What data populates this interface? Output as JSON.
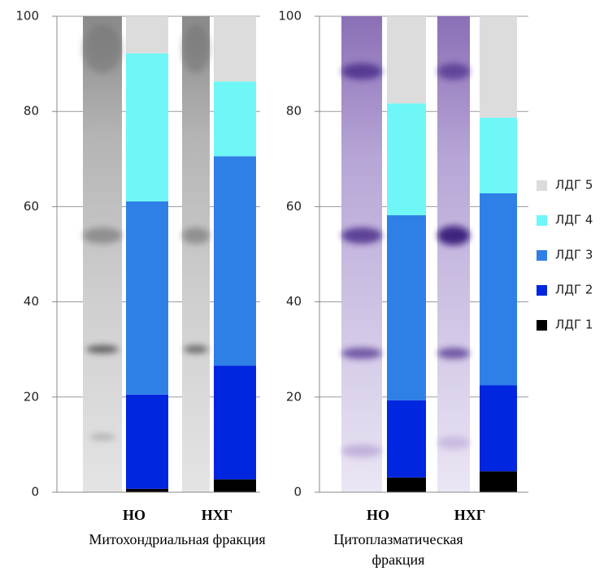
{
  "chart_data": [
    {
      "type": "bar",
      "stacked": true,
      "xlabel": "Митохондриальная фракция",
      "categories": [
        "НО",
        "НХГ"
      ],
      "series": [
        {
          "color": "#000000",
          "values": [
            0.7,
            2.7
          ]
        },
        {
          "color": "#0026e0",
          "values": [
            19.8,
            23.9
          ]
        },
        {
          "color": "#2f80e6",
          "values": [
            40.6,
            44.0
          ]
        },
        {
          "color": "#6ff7f7",
          "values": [
            31.1,
            15.7
          ]
        },
        {
          "color": "#dcdcdc",
          "values": [
            7.8,
            13.7
          ]
        }
      ],
      "ylim": [
        0,
        100
      ],
      "yticks": [
        0,
        20,
        40,
        60,
        80,
        100
      ],
      "grid": true
    },
    {
      "type": "bar",
      "stacked": true,
      "xlabel": "Цитоплазматическая фракция",
      "categories": [
        "НО",
        "НХГ"
      ],
      "series": [
        {
          "name": "ЛДГ 1",
          "color": "#000000",
          "values": [
            3.1,
            4.4
          ]
        },
        {
          "name": "ЛДГ 2",
          "color": "#0026e0",
          "values": [
            16.2,
            18.1
          ]
        },
        {
          "name": "ЛДГ 3",
          "color": "#2f80e6",
          "values": [
            38.9,
            40.3
          ]
        },
        {
          "name": "ЛДГ 4",
          "color": "#6ff7f7",
          "values": [
            23.5,
            15.9
          ]
        },
        {
          "name": "ЛДГ 5",
          "color": "#dcdcdc",
          "values": [
            18.3,
            21.3
          ]
        }
      ],
      "ylim": [
        0,
        100
      ],
      "yticks": [
        0,
        20,
        40,
        60,
        80,
        100
      ],
      "grid": true,
      "legend": "right"
    }
  ]
}
